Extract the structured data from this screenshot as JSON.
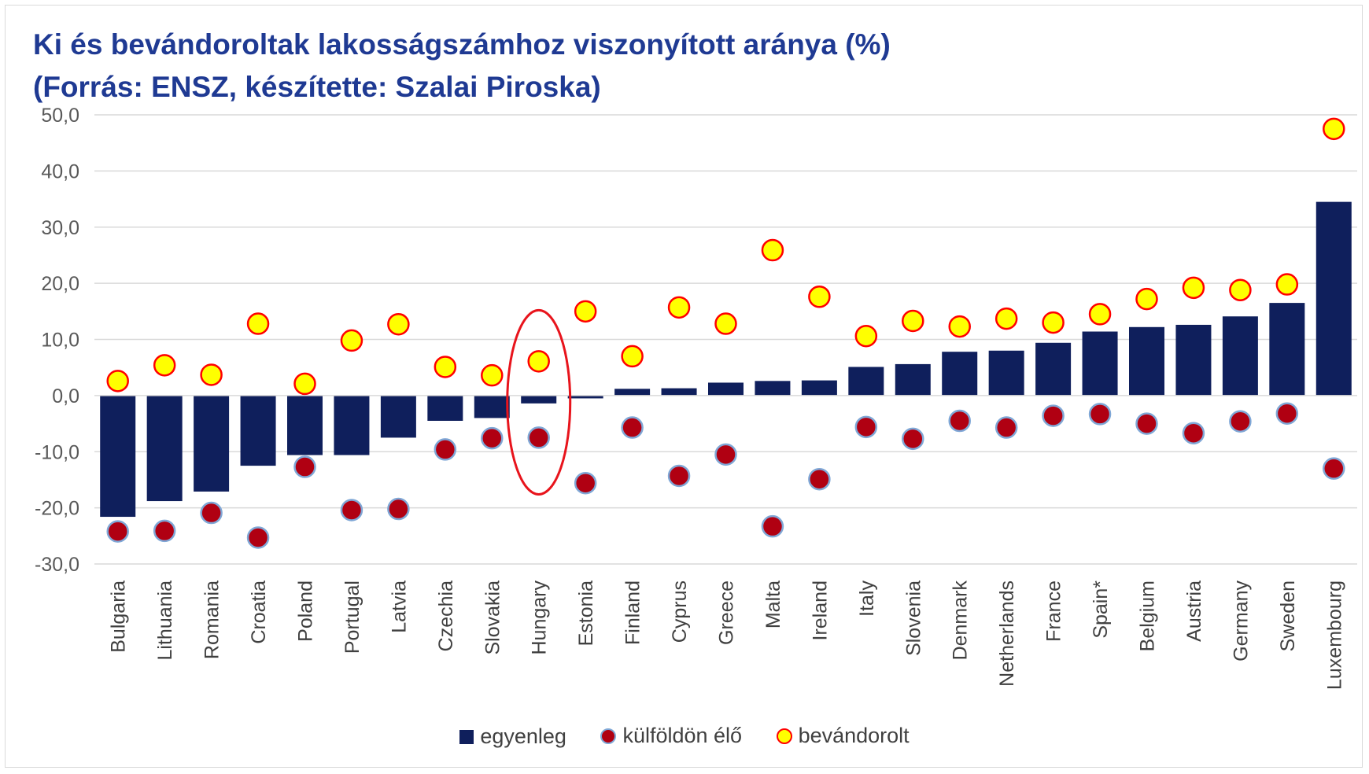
{
  "title": {
    "line1": "Ki és bevándoroltak lakosságszámhoz viszonyított aránya (%)",
    "line2": "(Forrás: ENSZ, készítette: Szalai Piroska)"
  },
  "legend": {
    "balance": "egyenleg",
    "emigrants": "külföldön élő",
    "immigrants": "bevándorolt"
  },
  "colors": {
    "bar": "#0f1f5c",
    "emigrant_dot": "#b00012",
    "emigrant_dot_border": "#7fa7d6",
    "immigrant_dot": "#ffff00",
    "immigrant_dot_border": "#ff0000",
    "highlight_ellipse": "#e8141c",
    "title": "#1f3a93"
  },
  "chart_data": {
    "type": "bar",
    "title": "Ki és bevándoroltak lakosságszámhoz viszonyított aránya (%)",
    "subtitle": "(Forrás: ENSZ, készítette: Szalai Piroska)",
    "xlabel": "",
    "ylabel": "",
    "ylim": [
      -30,
      50
    ],
    "yticks": [
      "50,0",
      "40,0",
      "30,0",
      "20,0",
      "10,0",
      "0,0",
      "-10,0",
      "-20,0",
      "-30,0"
    ],
    "ytick_values": [
      50,
      40,
      30,
      20,
      10,
      0,
      -10,
      -20,
      -30
    ],
    "grid": true,
    "legend_position": "bottom",
    "highlight": "Hungary",
    "categories": [
      "Bulgaria",
      "Lithuania",
      "Romania",
      "Croatia",
      "Poland",
      "Portugal",
      "Latvia",
      "Czechia",
      "Slovakia",
      "Hungary",
      "Estonia",
      "Finland",
      "Cyprus",
      "Greece",
      "Malta",
      "Ireland",
      "Italy",
      "Slovenia",
      "Denmark",
      "Netherlands",
      "France",
      "Spain*",
      "Belgium",
      "Austria",
      "Germany",
      "Sweden",
      "Luxembourg"
    ],
    "series": [
      {
        "name": "egyenleg",
        "kind": "bar",
        "values": [
          -21.6,
          -18.8,
          -17.1,
          -12.5,
          -10.6,
          -10.6,
          -7.5,
          -4.5,
          -4.0,
          -1.4,
          -0.5,
          1.2,
          1.3,
          2.3,
          2.6,
          2.7,
          5.1,
          5.6,
          7.8,
          8.0,
          9.4,
          11.4,
          12.2,
          12.6,
          14.1,
          16.5,
          34.5
        ]
      },
      {
        "name": "külföldön élő",
        "kind": "dot",
        "values": [
          -24.2,
          -24.1,
          -20.9,
          -25.3,
          -12.7,
          -20.4,
          -20.2,
          -9.6,
          -7.6,
          -7.5,
          -15.6,
          -5.7,
          -14.3,
          -10.5,
          -23.3,
          -14.9,
          -5.6,
          -7.7,
          -4.5,
          -5.7,
          -3.6,
          -3.3,
          -5.0,
          -6.7,
          -4.6,
          -3.2,
          -13.0
        ]
      },
      {
        "name": "bevándorolt",
        "kind": "dot",
        "values": [
          2.6,
          5.4,
          3.7,
          12.8,
          2.1,
          9.8,
          12.7,
          5.1,
          3.6,
          6.1,
          15.0,
          7.0,
          15.7,
          12.8,
          25.9,
          17.6,
          10.6,
          13.3,
          12.3,
          13.7,
          13.0,
          14.5,
          17.2,
          19.2,
          18.8,
          19.8,
          47.5
        ]
      }
    ]
  }
}
